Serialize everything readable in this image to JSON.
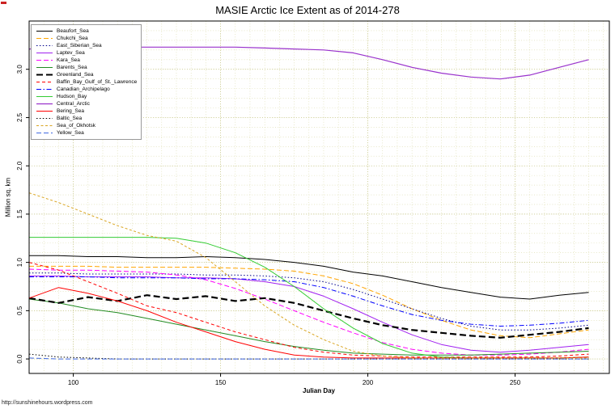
{
  "page": {
    "watermark": "http://sunshinehours.wordpress.com"
  },
  "chart_data": {
    "type": "line",
    "title": "MASIE Arctic Ice Extent as of 2014-278",
    "xlabel": "Julian Day",
    "ylabel": "Million sq. km",
    "xlim": [
      85,
      282
    ],
    "ylim": [
      -0.15,
      3.5
    ],
    "x_ticks": [
      100,
      150,
      200,
      250
    ],
    "y_ticks": [
      0.0,
      0.5,
      1.0,
      1.5,
      2.0,
      2.5,
      3.0
    ],
    "grid": true,
    "legend_position": "top-left",
    "x": [
      85,
      95,
      105,
      115,
      125,
      135,
      145,
      155,
      165,
      175,
      185,
      195,
      205,
      215,
      225,
      235,
      245,
      255,
      265,
      275
    ],
    "series": [
      {
        "name": "Beaufort_Sea",
        "color": "#000000",
        "dash": "",
        "width": 1,
        "values": [
          1.07,
          1.07,
          1.06,
          1.06,
          1.05,
          1.05,
          1.06,
          1.05,
          1.03,
          1.0,
          0.96,
          0.9,
          0.86,
          0.8,
          0.74,
          0.69,
          0.64,
          0.62,
          0.66,
          0.69
        ]
      },
      {
        "name": "Chukchi_Sea",
        "color": "#FFA500",
        "dash": "6,3",
        "width": 1,
        "values": [
          0.96,
          0.96,
          0.96,
          0.95,
          0.95,
          0.95,
          0.95,
          0.94,
          0.93,
          0.91,
          0.86,
          0.78,
          0.66,
          0.52,
          0.4,
          0.3,
          0.24,
          0.22,
          0.26,
          0.3
        ]
      },
      {
        "name": "East_Siberian_Sea",
        "color": "#00008B",
        "dash": "1.5,2.4",
        "width": 1,
        "values": [
          0.89,
          0.89,
          0.88,
          0.88,
          0.88,
          0.88,
          0.87,
          0.87,
          0.86,
          0.84,
          0.8,
          0.72,
          0.62,
          0.52,
          0.42,
          0.34,
          0.3,
          0.3,
          0.32,
          0.35
        ]
      },
      {
        "name": "Laptev_Sea",
        "color": "#A020F0",
        "dash": "",
        "width": 1,
        "values": [
          0.86,
          0.86,
          0.85,
          0.85,
          0.85,
          0.84,
          0.84,
          0.83,
          0.8,
          0.75,
          0.65,
          0.52,
          0.38,
          0.25,
          0.15,
          0.09,
          0.07,
          0.09,
          0.12,
          0.15
        ]
      },
      {
        "name": "Kara_Sea",
        "color": "#FF00FF",
        "dash": "6,3",
        "width": 1,
        "values": [
          0.93,
          0.92,
          0.92,
          0.91,
          0.9,
          0.87,
          0.82,
          0.73,
          0.62,
          0.5,
          0.38,
          0.27,
          0.17,
          0.1,
          0.06,
          0.04,
          0.04,
          0.05,
          0.07,
          0.1
        ]
      },
      {
        "name": "Barents_Sea",
        "color": "#228B22",
        "dash": "",
        "width": 1,
        "values": [
          0.62,
          0.58,
          0.52,
          0.48,
          0.42,
          0.36,
          0.3,
          0.24,
          0.18,
          0.13,
          0.09,
          0.06,
          0.05,
          0.04,
          0.04,
          0.04,
          0.05,
          0.06,
          0.07,
          0.08
        ]
      },
      {
        "name": "Greenland_Sea",
        "color": "#000000",
        "dash": "8,4",
        "width": 2.2,
        "values": [
          0.63,
          0.58,
          0.64,
          0.6,
          0.66,
          0.62,
          0.65,
          0.6,
          0.63,
          0.58,
          0.5,
          0.42,
          0.35,
          0.3,
          0.27,
          0.24,
          0.22,
          0.25,
          0.28,
          0.32
        ]
      },
      {
        "name": "Baffin_Bay_Gulf_of_St._Lawrence",
        "color": "#FF0000",
        "dash": "4,3",
        "width": 1,
        "values": [
          1.0,
          0.92,
          0.8,
          0.68,
          0.55,
          0.48,
          0.38,
          0.28,
          0.2,
          0.12,
          0.07,
          0.04,
          0.03,
          0.02,
          0.02,
          0.02,
          0.02,
          0.02,
          0.03,
          0.05
        ]
      },
      {
        "name": "Canadian_Archipelago",
        "color": "#0000FF",
        "dash": "6,2.5,1.5,2.5",
        "width": 1,
        "values": [
          0.85,
          0.85,
          0.85,
          0.84,
          0.84,
          0.84,
          0.83,
          0.83,
          0.82,
          0.8,
          0.74,
          0.65,
          0.55,
          0.46,
          0.4,
          0.36,
          0.34,
          0.35,
          0.37,
          0.4
        ]
      },
      {
        "name": "Hudson_Bay",
        "color": "#33CC33",
        "dash": "",
        "width": 1,
        "values": [
          1.26,
          1.26,
          1.26,
          1.26,
          1.26,
          1.25,
          1.2,
          1.1,
          0.95,
          0.75,
          0.52,
          0.32,
          0.16,
          0.06,
          0.02,
          0.01,
          0.01,
          0.01,
          0.01,
          0.02
        ]
      },
      {
        "name": "Central_Arctic",
        "color": "#9932CC",
        "dash": "",
        "width": 1.2,
        "values": [
          3.21,
          3.22,
          3.22,
          3.23,
          3.23,
          3.23,
          3.23,
          3.23,
          3.22,
          3.21,
          3.2,
          3.17,
          3.1,
          3.02,
          2.96,
          2.92,
          2.9,
          2.94,
          3.02,
          3.1
        ]
      },
      {
        "name": "Bering_Sea",
        "color": "#FF0000",
        "dash": "",
        "width": 1,
        "values": [
          0.63,
          0.74,
          0.68,
          0.6,
          0.5,
          0.38,
          0.28,
          0.18,
          0.1,
          0.04,
          0.02,
          0.01,
          0.01,
          0.01,
          0.01,
          0.01,
          0.01,
          0.01,
          0.01,
          0.02
        ]
      },
      {
        "name": "Baltic_Sea",
        "color": "#000000",
        "dash": "1.5,2.4",
        "width": 1,
        "values": [
          0.05,
          0.02,
          0.01,
          0.0,
          0.0,
          0.0,
          0.0,
          0.0,
          0.0,
          0.0,
          0.0,
          0.0,
          0.0,
          0.0,
          0.0,
          0.0,
          0.0,
          0.0,
          0.0,
          0.0
        ]
      },
      {
        "name": "Sea_of_Okhotsk",
        "color": "#DAA520",
        "dash": "3,2.5",
        "width": 1,
        "values": [
          1.72,
          1.62,
          1.5,
          1.38,
          1.28,
          1.22,
          1.05,
          0.8,
          0.55,
          0.35,
          0.2,
          0.08,
          0.03,
          0.01,
          0.01,
          0.01,
          0.01,
          0.01,
          0.01,
          0.01
        ]
      },
      {
        "name": "Yellow_Sea",
        "color": "#4169E1",
        "dash": "6,3",
        "width": 1,
        "values": [
          0.01,
          0.0,
          0.0,
          0.0,
          0.0,
          0.0,
          0.0,
          0.0,
          0.0,
          0.0,
          0.0,
          0.0,
          0.0,
          0.0,
          0.0,
          0.0,
          0.0,
          0.0,
          0.0,
          0.0
        ]
      }
    ]
  }
}
